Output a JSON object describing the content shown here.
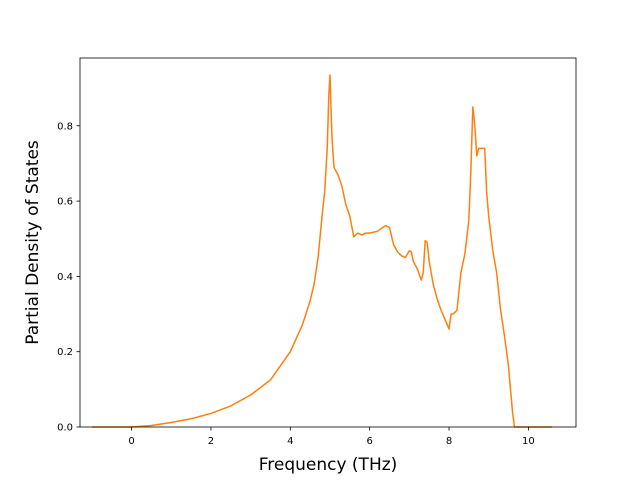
{
  "chart_data": {
    "type": "line",
    "title": "",
    "xlabel": "Frequency (THz)",
    "ylabel": "Partial Density of States",
    "xlim": [
      -1.3,
      11.2
    ],
    "ylim": [
      0.0,
      0.98
    ],
    "x_ticks": [
      0,
      2,
      4,
      6,
      8,
      10
    ],
    "y_ticks": [
      0.0,
      0.2,
      0.4,
      0.6,
      0.8
    ],
    "x_tick_labels": [
      "0",
      "2",
      "4",
      "6",
      "8",
      "10"
    ],
    "y_tick_labels": [
      "0.0",
      "0.2",
      "0.4",
      "0.6",
      "0.8"
    ],
    "grid": false,
    "legend": "none",
    "series": [
      {
        "color": "#ff7f0e",
        "x": [
          -1.0,
          -0.5,
          0.0,
          0.5,
          1.0,
          1.5,
          2.0,
          2.5,
          3.0,
          3.5,
          4.0,
          4.3,
          4.5,
          4.6,
          4.7,
          4.8,
          4.87,
          4.93,
          4.97,
          5.0,
          5.05,
          5.1,
          5.2,
          5.3,
          5.4,
          5.5,
          5.6,
          5.7,
          5.8,
          5.9,
          6.0,
          6.2,
          6.4,
          6.5,
          6.6,
          6.7,
          6.8,
          6.9,
          7.0,
          7.05,
          7.1,
          7.2,
          7.3,
          7.35,
          7.4,
          7.45,
          7.5,
          7.6,
          7.7,
          7.8,
          7.9,
          8.0,
          8.05,
          8.1,
          8.2,
          8.3,
          8.4,
          8.5,
          8.55,
          8.6,
          8.65,
          8.7,
          8.75,
          8.8,
          8.85,
          8.9,
          8.95,
          9.0,
          9.1,
          9.2,
          9.3,
          9.4,
          9.5,
          9.6,
          9.65,
          9.7,
          10.0,
          10.3,
          10.6
        ],
        "values": [
          0.0,
          0.0,
          0.0,
          0.004,
          0.012,
          0.022,
          0.036,
          0.056,
          0.085,
          0.125,
          0.2,
          0.27,
          0.335,
          0.38,
          0.45,
          0.56,
          0.63,
          0.74,
          0.88,
          0.935,
          0.77,
          0.69,
          0.67,
          0.64,
          0.59,
          0.56,
          0.505,
          0.515,
          0.51,
          0.515,
          0.515,
          0.52,
          0.535,
          0.53,
          0.485,
          0.465,
          0.455,
          0.45,
          0.468,
          0.465,
          0.44,
          0.42,
          0.39,
          0.41,
          0.495,
          0.49,
          0.44,
          0.38,
          0.34,
          0.31,
          0.285,
          0.26,
          0.3,
          0.3,
          0.31,
          0.41,
          0.46,
          0.55,
          0.68,
          0.85,
          0.8,
          0.72,
          0.74,
          0.74,
          0.74,
          0.74,
          0.62,
          0.56,
          0.47,
          0.41,
          0.31,
          0.24,
          0.16,
          0.04,
          0.0,
          0.0,
          0.0,
          0.0,
          0.0
        ]
      }
    ]
  }
}
